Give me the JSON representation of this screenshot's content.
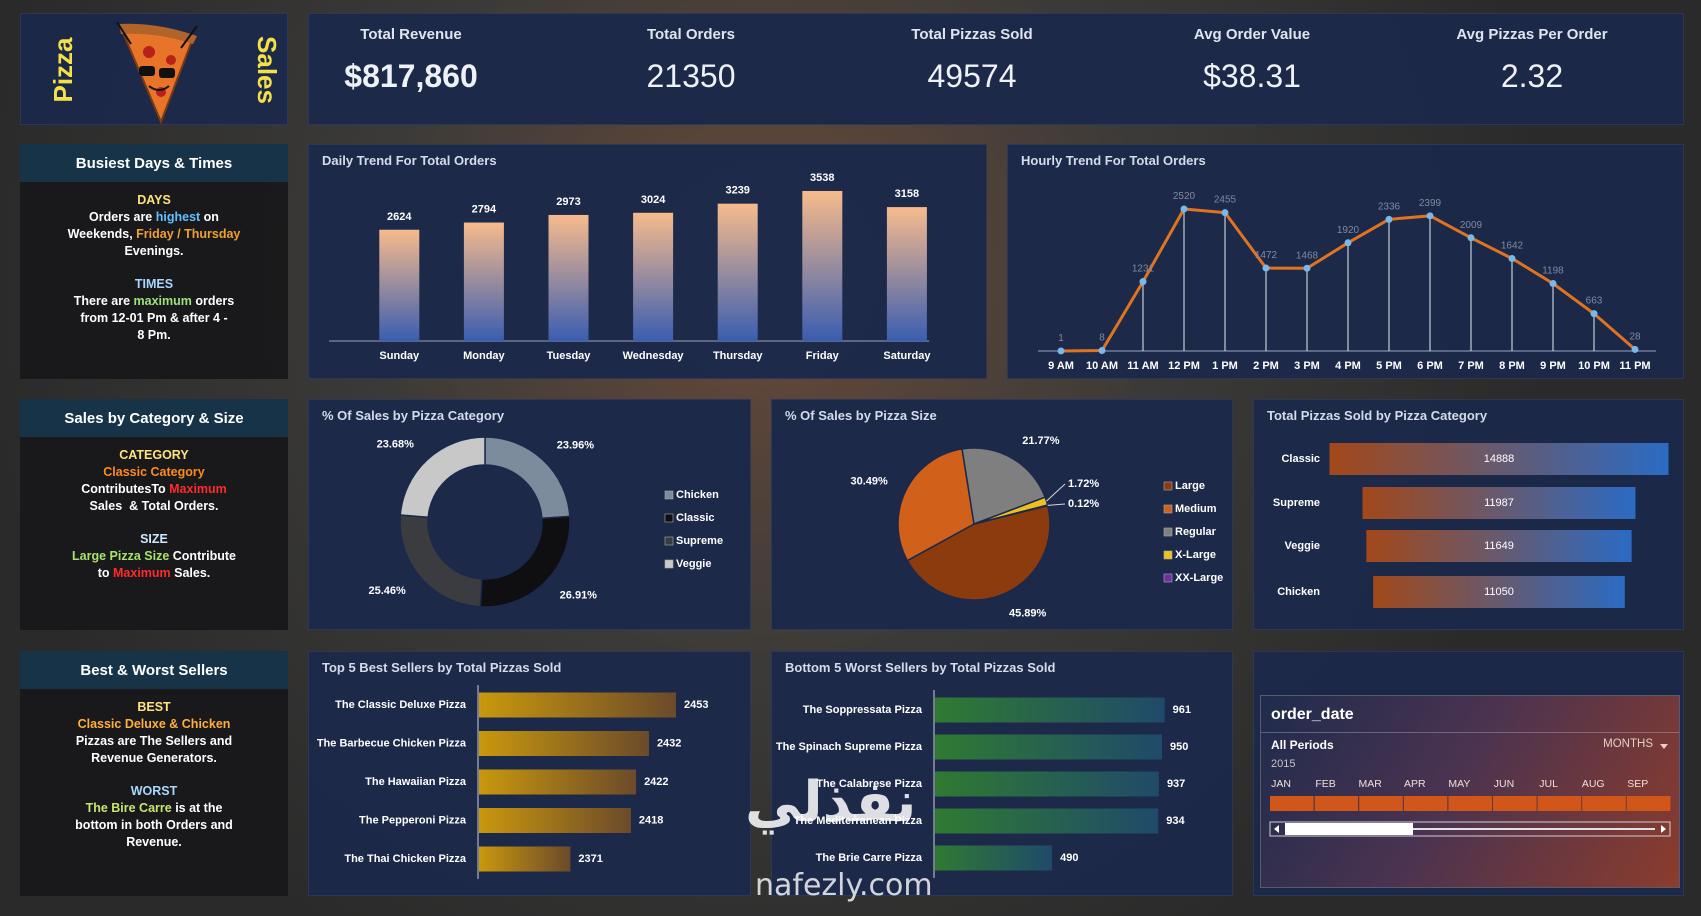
{
  "logo": {
    "left": "Pizza",
    "right": "Sales"
  },
  "kpis": [
    {
      "label": "Total Revenue",
      "value": "$817,860"
    },
    {
      "label": "Total Orders",
      "value": "21350"
    },
    {
      "label": "Total Pizzas Sold",
      "value": "49574"
    },
    {
      "label": "Avg Order Value",
      "value": "$38.31"
    },
    {
      "label": "Avg Pizzas Per Order",
      "value": "2.32"
    }
  ],
  "notes": [
    {
      "title": "Busiest Days & Times",
      "sections": [
        {
          "heading": "DAYS",
          "heading_color": "#ffe37a",
          "lines": [
            [
              {
                "text": "Orders are ",
                "color": "#ffffff"
              },
              {
                "text": "highest",
                "color": "#5fc0ff"
              },
              {
                "text": " on",
                "color": "#ffffff"
              }
            ],
            [
              {
                "text": "Weekends, ",
                "color": "#ffffff"
              },
              {
                "text": "Friday / Thursday",
                "color": "#f0a030"
              }
            ],
            [
              {
                "text": "Evenings.",
                "color": "#ffffff"
              }
            ]
          ]
        },
        {
          "heading": "TIMES",
          "heading_color": "#a9d4ff",
          "lines": [
            [
              {
                "text": "There are ",
                "color": "#ffffff"
              },
              {
                "text": "maximum",
                "color": "#9be37a"
              },
              {
                "text": " orders",
                "color": "#ffffff"
              }
            ],
            [
              {
                "text": "from 12-01 Pm & after 4 -",
                "color": "#ffffff"
              }
            ],
            [
              {
                "text": "8 Pm.",
                "color": "#ffffff"
              }
            ]
          ]
        }
      ]
    },
    {
      "title": "Sales by Category & Size",
      "sections": [
        {
          "heading": "CATEGORY",
          "heading_color": "#ffe37a",
          "lines": [
            [
              {
                "text": "Classic Category",
                "color": "#ff8c1a"
              }
            ],
            [
              {
                "text": "ContributesTo ",
                "color": "#ffffff"
              },
              {
                "text": "Maximum",
                "color": "#ff2a2a"
              }
            ],
            [
              {
                "text": "Sales  & Total Orders.",
                "color": "#ffffff"
              }
            ]
          ]
        },
        {
          "heading": "SIZE",
          "heading_color": "#cfe6ff",
          "lines": [
            [
              {
                "text": "Large Pizza Size",
                "color": "#a6e36b"
              },
              {
                "text": " Contribute",
                "color": "#ffffff"
              }
            ],
            [
              {
                "text": "to ",
                "color": "#ffffff"
              },
              {
                "text": "Maximum",
                "color": "#ff2a2a"
              },
              {
                "text": " Sales.",
                "color": "#ffffff"
              }
            ]
          ]
        }
      ]
    },
    {
      "title": "Best & Worst Sellers",
      "sections": [
        {
          "heading": "BEST",
          "heading_color": "#ffe37a",
          "lines": [
            [
              {
                "text": "Classic Deluxe & Chicken",
                "color": "#ffb03a"
              }
            ],
            [
              {
                "text": "Pizzas are The Sellers and",
                "color": "#ffffff"
              }
            ],
            [
              {
                "text": "Revenue Generators.",
                "color": "#ffffff"
              }
            ]
          ]
        },
        {
          "heading": "WORST",
          "heading_color": "#a9d8ff",
          "lines": [
            [
              {
                "text": "The Bire Carre",
                "color": "#c5e86c"
              },
              {
                "text": " is at the",
                "color": "#ffffff"
              }
            ],
            [
              {
                "text": "bottom in both Orders and",
                "color": "#ffffff"
              }
            ],
            [
              {
                "text": "Revenue.",
                "color": "#ffffff"
              }
            ]
          ]
        }
      ]
    }
  ],
  "chart_data": [
    {
      "type": "bar",
      "title": "Daily  Trend For Total Orders",
      "categories": [
        "Sunday",
        "Monday",
        "Tuesday",
        "Wednesday",
        "Thursday",
        "Friday",
        "Saturday"
      ],
      "values": [
        2624,
        2794,
        2973,
        3024,
        3239,
        3538,
        3158
      ],
      "color_top": "#f7bb8c",
      "color_bottom": "#3a5db0"
    },
    {
      "type": "line",
      "title": "Hourly  Trend For Total Orders",
      "categories": [
        "9 AM",
        "10 AM",
        "11 AM",
        "12 PM",
        "1 PM",
        "2 PM",
        "3 PM",
        "4 PM",
        "5 PM",
        "6 PM",
        "7 PM",
        "8 PM",
        "9 PM",
        "10 PM",
        "11 PM"
      ],
      "values": [
        1,
        8,
        1231,
        2520,
        2455,
        1472,
        1468,
        1920,
        2336,
        2399,
        2009,
        1642,
        1198,
        663,
        28
      ],
      "color": "#e0731f",
      "marker_color": "#7ab8ea"
    },
    {
      "type": "donut",
      "title": "% Of Sales by Pizza Category",
      "categories": [
        "Chicken",
        "Classic",
        "Supreme",
        "Veggie"
      ],
      "values": [
        23.96,
        26.91,
        25.46,
        23.68
      ],
      "value_labels": [
        "23.96%",
        "26.91%",
        "25.46%",
        "23.68%"
      ],
      "colors": [
        "#7d8c9c",
        "#0f0f12",
        "#3a3c40",
        "#c8c8c8"
      ]
    },
    {
      "type": "pie",
      "title": "% Of Sales by Pizza Size",
      "categories": [
        "Large",
        "Medium",
        "Regular",
        "X-Large",
        "XX-Large"
      ],
      "values": [
        45.89,
        30.49,
        21.77,
        1.72,
        0.12
      ],
      "value_labels": [
        "45.89%",
        "30.49%",
        "21.77%",
        "1.72%",
        "0.12%"
      ],
      "colors": [
        "#8c3b0f",
        "#d0601a",
        "#7f7f7f",
        "#f0c020",
        "#7030a0"
      ]
    },
    {
      "type": "funnel",
      "title": "Total Pizzas Sold by Pizza Category",
      "categories": [
        "Classic",
        "Supreme",
        "Veggie",
        "Chicken"
      ],
      "values": [
        14888,
        11987,
        11649,
        11050
      ],
      "color_start": "#a3481a",
      "color_end": "#2a6bc4"
    },
    {
      "type": "hbar",
      "title": "Top 5 Best Sellers by Total Pizzas Sold",
      "categories": [
        "The Classic Deluxe Pizza",
        "The Barbecue Chicken Pizza",
        "The Hawaiian Pizza",
        "The Pepperoni Pizza",
        "The Thai Chicken Pizza"
      ],
      "values": [
        2453,
        2432,
        2422,
        2418,
        2371
      ],
      "xlim": [
        2300,
        2460
      ],
      "color_start": "#c9980d",
      "color_end": "#6b4a2a"
    },
    {
      "type": "hbar",
      "title": "Bottom 5 Worst Sellers by Total Pizzas Sold",
      "categories": [
        "The Soppressata Pizza",
        "The Spinach Supreme Pizza",
        "The Calabrese Pizza",
        "The Mediterranean Pizza",
        "The Brie Carre Pizza"
      ],
      "values": [
        961,
        950,
        937,
        934,
        490
      ],
      "xlim": [
        0,
        1000
      ],
      "color_start": "#2f7a32",
      "color_end": "#1f4a6a"
    }
  ],
  "slicer": {
    "title": "order_date",
    "period": "All Periods",
    "level": "MONTHS",
    "year": "2015",
    "months": [
      "JAN",
      "FEB",
      "MAR",
      "APR",
      "MAY",
      "JUN",
      "JUL",
      "AUG",
      "SEP"
    ]
  },
  "watermark": {
    "arabic": "نفذلي",
    "latin": "nafezly.com"
  }
}
